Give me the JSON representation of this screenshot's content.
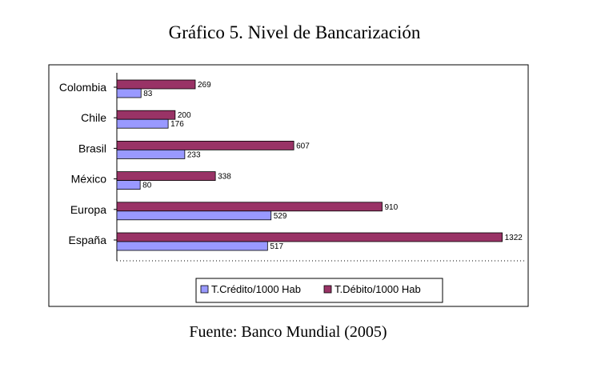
{
  "title": "Gráfico 5. Nivel de Bancarización",
  "source": "Fuente: Banco Mundial (2005)",
  "colors": {
    "credito": "#9999ff",
    "debito": "#993366"
  },
  "chart_data": {
    "type": "bar",
    "orientation": "horizontal",
    "categories": [
      "Colombia",
      "Chile",
      "Brasil",
      "México",
      "Europa",
      "España"
    ],
    "series": [
      {
        "name": "T.Débito/1000 Hab",
        "values": [
          269,
          200,
          607,
          338,
          910,
          1322
        ]
      },
      {
        "name": "T.Crédito/1000 Hab",
        "values": [
          83,
          176,
          233,
          80,
          529,
          517
        ]
      }
    ],
    "xlim": [
      0,
      1400
    ],
    "grid": false,
    "legend_position": "bottom",
    "legend_order": [
      "T.Crédito/1000 Hab",
      "T.Débito/1000 Hab"
    ],
    "title": "",
    "xlabel": "",
    "ylabel": ""
  }
}
